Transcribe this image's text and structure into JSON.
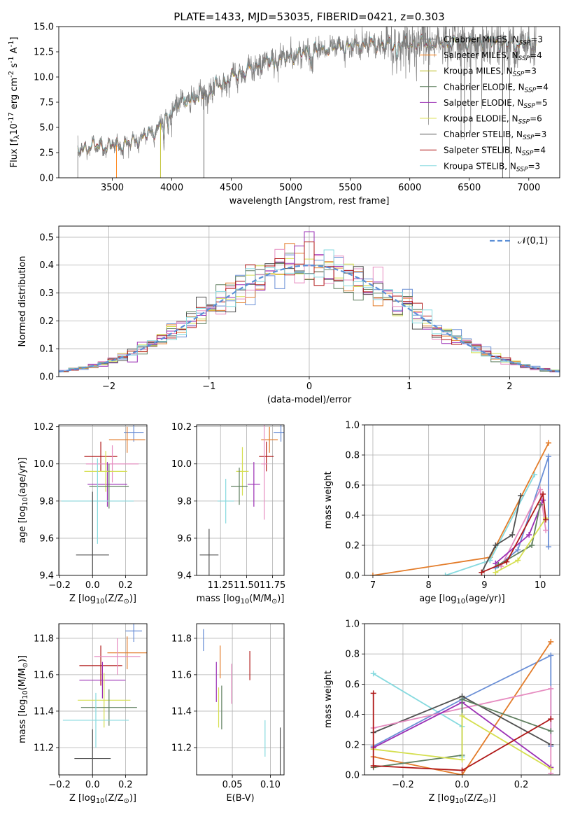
{
  "figure": {
    "title": "PLATE=1433, MJD=53035, FIBERID=0421, z=0.303"
  },
  "chart_data": [
    {
      "id": "spectrum",
      "type": "line",
      "xlabel": "wavelength [Angstrom, rest frame]",
      "ylabel": "Flux [f$_\\lambda$10$^{-17}$ erg cm$^{-2}$ s$^{-1}$ A$^{-1}$]",
      "xlim": [
        3050,
        7260
      ],
      "ylim": [
        0,
        15
      ],
      "xticks": [
        3500,
        4000,
        4500,
        5000,
        5500,
        6000,
        6500,
        7000
      ],
      "yticks": [
        0.0,
        2.5,
        5.0,
        7.5,
        10.0,
        12.5,
        15.0
      ],
      "data_range": [
        3210,
        7060
      ],
      "continuum": [
        [
          3210,
          2.6
        ],
        [
          3300,
          3.1
        ],
        [
          3500,
          3.2
        ],
        [
          3620,
          3.3
        ],
        [
          3750,
          4.0
        ],
        [
          3850,
          4.6
        ],
        [
          3950,
          6.0
        ],
        [
          4050,
          7.5
        ],
        [
          4200,
          8.0
        ],
        [
          4400,
          9.3
        ],
        [
          4600,
          10.5
        ],
        [
          4800,
          11.5
        ],
        [
          5000,
          12.0
        ],
        [
          5200,
          12.7
        ],
        [
          5400,
          13.0
        ],
        [
          5600,
          13.2
        ],
        [
          5800,
          13.2
        ],
        [
          6000,
          13.3
        ],
        [
          6200,
          13.4
        ],
        [
          6400,
          13.4
        ],
        [
          6600,
          13.5
        ],
        [
          6800,
          13.3
        ],
        [
          7060,
          13.2
        ]
      ],
      "legend_position": "upper right",
      "series": [
        {
          "name": "Chabrier MILES, N$_{SSP}$=3",
          "color": "#808080"
        },
        {
          "name": "Salpeter MILES, N$_{SSP}$=4",
          "color": "#ff7f0e"
        },
        {
          "name": "Kroupa MILES, N$_{SSP}$=3",
          "color": "#bcbd22"
        },
        {
          "name": "Chabrier ELODIE, N$_{SSP}$=4",
          "color": "#5a7d5a"
        },
        {
          "name": "Salpeter ELODIE, N$_{SSP}$=5",
          "color": "#9b30b5"
        },
        {
          "name": "Kroupa ELODIE, N$_{SSP}$=6",
          "color": "#dde05a"
        },
        {
          "name": "Chabrier STELIB, N$_{SSP}$=3",
          "color": "#555555"
        },
        {
          "name": "Salpeter STELIB, N$_{SSP}$=4",
          "color": "#b01818"
        },
        {
          "name": "Kroupa STELIB, N$_{SSP}$=3",
          "color": "#86dadf"
        }
      ]
    },
    {
      "id": "residuals",
      "type": "line",
      "xlabel": "(data-model)/error",
      "ylabel": "Normed distribution",
      "xlim": [
        -2.5,
        2.5
      ],
      "ylim": [
        0,
        0.54
      ],
      "xticks": [
        -2,
        -1,
        0,
        1,
        2
      ],
      "yticks": [
        0.0,
        0.1,
        0.2,
        0.3,
        0.4,
        0.5
      ],
      "grid": true,
      "bins": 51,
      "legend_position": "upper right",
      "reference": {
        "name": "$\\mathcal{N}(0,1)$",
        "color": "#5b8fd6",
        "style": "dashed"
      },
      "series_colors": [
        "#6a8fd6",
        "#e37c2a",
        "#d5df50",
        "#5f7f5f",
        "#9b30b5",
        "#e68cc0",
        "#505050",
        "#b01818",
        "#86dadf"
      ]
    },
    {
      "id": "age-vs-Z",
      "type": "errorbar",
      "xlabel": "Z [log$_{10}$(Z/Z$_\\odot$)]",
      "ylabel": "age  [log$_{10}$(age/yr)]",
      "xlim": [
        -0.205,
        0.33
      ],
      "ylim": [
        9.4,
        10.21
      ],
      "xticks": [
        -0.2,
        0.0,
        0.2
      ],
      "yticks": [
        9.4,
        9.6,
        9.8,
        10.0,
        10.2
      ],
      "grid": true,
      "points": [
        {
          "x": 0.25,
          "y": 10.17,
          "xerr": 0.06,
          "yerr": 0.05,
          "color": "#6a8fd6"
        },
        {
          "x": 0.21,
          "y": 10.13,
          "xerr": 0.11,
          "yerr": 0.07,
          "color": "#e37c2a"
        },
        {
          "x": 0.05,
          "y": 10.04,
          "xerr": 0.1,
          "yerr": 0.08,
          "color": "#b01818"
        },
        {
          "x": 0.12,
          "y": 10.0,
          "xerr": 0.16,
          "yerr": 0.1,
          "color": "#e68cc0"
        },
        {
          "x": 0.09,
          "y": 9.89,
          "xerr": 0.12,
          "yerr": 0.12,
          "color": "#9b30b5"
        },
        {
          "x": 0.08,
          "y": 9.96,
          "xerr": 0.13,
          "yerr": 0.11,
          "color": "#d5df50"
        },
        {
          "x": 0.1,
          "y": 9.88,
          "xerr": 0.12,
          "yerr": 0.12,
          "color": "#5f7f5f"
        },
        {
          "x": 0.03,
          "y": 9.8,
          "xerr": 0.22,
          "yerr": 0.23,
          "color": "#86dadf"
        },
        {
          "x": 0.0,
          "y": 9.51,
          "xerr": 0.1,
          "yerr": 0.34,
          "color": "#505050"
        }
      ]
    },
    {
      "id": "age-vs-mass",
      "type": "errorbar",
      "xlabel": "mass [log$_{10}$(M/M$_\\odot$)]",
      "xlim": [
        11.02,
        11.86
      ],
      "ylim": [
        9.4,
        10.21
      ],
      "xticks": [
        11.25,
        11.5,
        11.75
      ],
      "xticklabels": [
        "11.25",
        "11.50",
        "11.75"
      ],
      "yticks": [
        9.4,
        9.6,
        9.8,
        10.0,
        10.2
      ],
      "grid": true,
      "points": [
        {
          "x": 11.83,
          "y": 10.17,
          "xerr": 0.07,
          "yerr": 0.05,
          "color": "#6a8fd6"
        },
        {
          "x": 11.72,
          "y": 10.13,
          "xerr": 0.08,
          "yerr": 0.07,
          "color": "#e37c2a"
        },
        {
          "x": 11.69,
          "y": 10.04,
          "xerr": 0.07,
          "yerr": 0.08,
          "color": "#b01818"
        },
        {
          "x": 11.67,
          "y": 10.0,
          "xerr": 0.03,
          "yerr": 0.3,
          "color": "#e68cc0"
        },
        {
          "x": 11.57,
          "y": 9.89,
          "xerr": 0.06,
          "yerr": 0.12,
          "color": "#9b30b5"
        },
        {
          "x": 11.46,
          "y": 9.96,
          "xerr": 0.06,
          "yerr": 0.13,
          "color": "#d5df50"
        },
        {
          "x": 11.43,
          "y": 9.88,
          "xerr": 0.08,
          "yerr": 0.1,
          "color": "#5f7f5f"
        },
        {
          "x": 11.3,
          "y": 9.8,
          "xerr": 0.08,
          "yerr": 0.12,
          "color": "#86dadf"
        },
        {
          "x": 11.14,
          "y": 9.51,
          "xerr": 0.09,
          "yerr": 0.14,
          "color": "#505050"
        }
      ]
    },
    {
      "id": "weight-vs-age",
      "type": "line",
      "xlabel": "age  [log$_{10}$(age/yr)]",
      "ylabel": "mass weight",
      "xlim": [
        6.85,
        10.35
      ],
      "ylim": [
        0,
        1
      ],
      "xticks": [
        7,
        8,
        9,
        10
      ],
      "yticks": [
        0.0,
        0.2,
        0.4,
        0.6,
        0.8,
        1.0
      ],
      "grid": true,
      "series": [
        {
          "color": "#e37c2a",
          "points": [
            [
              7.0,
              0.0
            ],
            [
              9.1,
              0.12
            ],
            [
              10.15,
              0.88
            ]
          ]
        },
        {
          "color": "#6a8fd6",
          "points": [
            [
              9.2,
              0.05
            ],
            [
              9.6,
              0.17
            ],
            [
              10.15,
              0.79
            ],
            [
              10.15,
              0.19
            ]
          ]
        },
        {
          "color": "#86dadf",
          "points": [
            [
              8.3,
              0.0
            ],
            [
              9.1,
              0.1
            ],
            [
              9.9,
              0.67
            ]
          ]
        },
        {
          "color": "#505050",
          "points": [
            [
              8.95,
              0.02
            ],
            [
              9.2,
              0.2
            ],
            [
              9.5,
              0.27
            ],
            [
              9.65,
              0.53
            ]
          ]
        },
        {
          "color": "#e68cc0",
          "points": [
            [
              9.3,
              0.06
            ],
            [
              10.0,
              0.57
            ],
            [
              10.1,
              0.3
            ]
          ]
        },
        {
          "color": "#9b30b5",
          "points": [
            [
              9.2,
              0.08
            ],
            [
              9.8,
              0.27
            ],
            [
              10.05,
              0.5
            ]
          ]
        },
        {
          "color": "#5f7f5f",
          "points": [
            [
              9.25,
              0.07
            ],
            [
              9.85,
              0.2
            ],
            [
              10.0,
              0.47
            ]
          ]
        },
        {
          "color": "#d5df50",
          "points": [
            [
              9.2,
              0.02
            ],
            [
              9.6,
              0.1
            ],
            [
              10.1,
              0.38
            ]
          ]
        },
        {
          "color": "#b01818",
          "points": [
            [
              8.95,
              0.02
            ],
            [
              9.4,
              0.09
            ],
            [
              10.05,
              0.54
            ],
            [
              10.1,
              0.37
            ]
          ]
        }
      ]
    },
    {
      "id": "mass-vs-Z",
      "type": "errorbar",
      "xlabel": "Z [log$_{10}$(Z/Z$_\\odot$)]",
      "ylabel": "mass [log$_{10}$(M/M$_\\odot$)]",
      "xlim": [
        -0.205,
        0.33
      ],
      "ylim": [
        11.05,
        11.88
      ],
      "xticks": [
        -0.2,
        0.0,
        0.2
      ],
      "yticks": [
        11.2,
        11.4,
        11.6,
        11.8
      ],
      "grid": true,
      "points": [
        {
          "x": 0.25,
          "y": 11.84,
          "xerr": 0.05,
          "yerr": 0.06,
          "color": "#6a8fd6"
        },
        {
          "x": 0.21,
          "y": 11.72,
          "xerr": 0.12,
          "yerr": 0.09,
          "color": "#e37c2a"
        },
        {
          "x": 0.05,
          "y": 11.65,
          "xerr": 0.13,
          "yerr": 0.11,
          "color": "#b01818"
        },
        {
          "x": 0.15,
          "y": 11.7,
          "xerr": 0.14,
          "yerr": 0.1,
          "color": "#e68cc0"
        },
        {
          "x": 0.06,
          "y": 11.57,
          "xerr": 0.14,
          "yerr": 0.1,
          "color": "#9b30b5"
        },
        {
          "x": 0.07,
          "y": 11.46,
          "xerr": 0.16,
          "yerr": 0.15,
          "color": "#d5df50"
        },
        {
          "x": 0.1,
          "y": 11.42,
          "xerr": 0.17,
          "yerr": 0.1,
          "color": "#5f7f5f"
        },
        {
          "x": 0.02,
          "y": 11.35,
          "xerr": 0.2,
          "yerr": 0.15,
          "color": "#86dadf"
        },
        {
          "x": 0.0,
          "y": 11.14,
          "xerr": 0.11,
          "yerr": 0.16,
          "color": "#505050"
        }
      ]
    },
    {
      "id": "mass-vs-ebv",
      "type": "errorbar",
      "xlabel": "E(B-V)",
      "xlim": [
        0.003,
        0.118
      ],
      "ylim": [
        11.05,
        11.88
      ],
      "xticks": [
        0.05,
        0.1
      ],
      "xticklabels": [
        "0.05",
        "0.10"
      ],
      "yticks": [
        11.2,
        11.4,
        11.6,
        11.8
      ],
      "grid": true,
      "points": [
        {
          "x": 0.012,
          "y": 11.79,
          "xerr": 0.0,
          "yerr": 0.06,
          "color": "#6a8fd6"
        },
        {
          "x": 0.034,
          "y": 11.67,
          "xerr": 0.0,
          "yerr": 0.09,
          "color": "#e37c2a"
        },
        {
          "x": 0.073,
          "y": 11.65,
          "xerr": 0.0,
          "yerr": 0.08,
          "color": "#b01818"
        },
        {
          "x": 0.049,
          "y": 11.55,
          "xerr": 0.0,
          "yerr": 0.11,
          "color": "#e68cc0"
        },
        {
          "x": 0.029,
          "y": 11.56,
          "xerr": 0.0,
          "yerr": 0.11,
          "color": "#9b30b5"
        },
        {
          "x": 0.032,
          "y": 11.42,
          "xerr": 0.0,
          "yerr": 0.11,
          "color": "#d5df50"
        },
        {
          "x": 0.036,
          "y": 11.42,
          "xerr": 0.0,
          "yerr": 0.12,
          "color": "#5f7f5f"
        },
        {
          "x": 0.093,
          "y": 11.25,
          "xerr": 0.0,
          "yerr": 0.1,
          "color": "#86dadf"
        },
        {
          "x": 0.113,
          "y": 11.16,
          "xerr": 0.0,
          "yerr": 0.15,
          "color": "#505050"
        }
      ]
    },
    {
      "id": "weight-vs-Z",
      "type": "line",
      "xlabel": "Z [log$_{10}$(Z/Z$_\\odot$)]",
      "ylabel": "mass weight",
      "xlim": [
        -0.33,
        0.33
      ],
      "ylim": [
        0,
        1
      ],
      "xticks": [
        -0.2,
        0.0,
        0.2
      ],
      "yticks": [
        0.0,
        0.2,
        0.4,
        0.6,
        0.8,
        1.0
      ],
      "grid": true,
      "series": [
        {
          "color": "#86dadf",
          "points": [
            [
              -0.3,
              0.67
            ],
            [
              0.0,
              0.32
            ],
            [
              0.0,
              0.12
            ]
          ]
        },
        {
          "color": "#6a8fd6",
          "points": [
            [
              -0.3,
              0.19
            ],
            [
              0.0,
              0.5
            ],
            [
              0.3,
              0.79
            ],
            [
              0.3,
              0.19
            ]
          ]
        },
        {
          "color": "#e37c2a",
          "points": [
            [
              -0.3,
              0.12
            ],
            [
              0.0,
              0.0
            ],
            [
              0.3,
              0.88
            ]
          ]
        },
        {
          "color": "#505050",
          "points": [
            [
              -0.3,
              0.28
            ],
            [
              0.0,
              0.52
            ],
            [
              0.3,
              0.2
            ]
          ]
        },
        {
          "color": "#e68cc0",
          "points": [
            [
              -0.3,
              0.31
            ],
            [
              0.3,
              0.57
            ],
            [
              0.3,
              0.01
            ]
          ]
        },
        {
          "color": "#9b30b5",
          "points": [
            [
              -0.3,
              0.18
            ],
            [
              0.0,
              0.48
            ],
            [
              0.3,
              0.05
            ]
          ]
        },
        {
          "color": "#5f7f5f",
          "points": [
            [
              -0.3,
              0.05
            ],
            [
              0.0,
              0.13
            ],
            [
              0.0,
              0.5
            ],
            [
              0.3,
              0.29
            ]
          ]
        },
        {
          "color": "#d5df50",
          "points": [
            [
              -0.3,
              0.17
            ],
            [
              0.0,
              0.1
            ],
            [
              0.0,
              0.39
            ],
            [
              0.3,
              0.04
            ]
          ]
        },
        {
          "color": "#b01818",
          "points": [
            [
              -0.3,
              0.54
            ],
            [
              -0.3,
              0.06
            ],
            [
              0.0,
              0.03
            ],
            [
              0.3,
              0.37
            ]
          ]
        }
      ]
    }
  ]
}
